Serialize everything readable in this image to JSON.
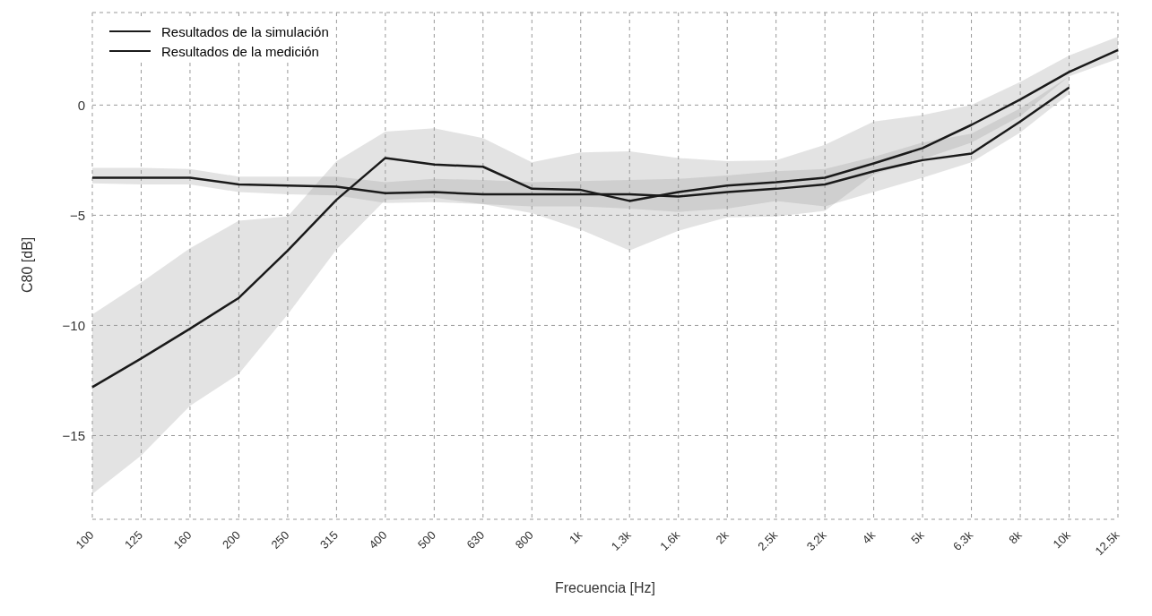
{
  "chart_data": {
    "type": "line",
    "xlabel": "Frecuencia [Hz]",
    "ylabel": "C80 [dB]",
    "categories": [
      "100",
      "125",
      "160",
      "200",
      "250",
      "315",
      "400",
      "500",
      "630",
      "800",
      "1k",
      "1.3k",
      "1.6k",
      "2k",
      "2.5k",
      "3.2k",
      "4k",
      "5k",
      "6.3k",
      "8k",
      "10k",
      "12.5k"
    ],
    "ylim": [
      -18.8,
      4.2
    ],
    "yticks": [
      {
        "value": -15,
        "label": "−15"
      },
      {
        "value": -10,
        "label": "−10"
      },
      {
        "value": -5,
        "label": "−5"
      },
      0
    ],
    "grid": true,
    "legend": "top left",
    "marker": "none",
    "line_style": "solid",
    "series": [
      {
        "name": "Resultados de la simulación",
        "color": "#1a1a1a",
        "values": [
          -3.3,
          -3.3,
          -3.3,
          -3.6,
          -3.65,
          -3.7,
          -4.0,
          -3.95,
          -4.05,
          -4.05,
          -4.05,
          -4.05,
          -4.15,
          -3.95,
          -3.8,
          -3.6,
          -3.0,
          -2.5,
          -2.2,
          -0.75,
          0.8,
          null
        ],
        "lower": [
          -3.55,
          -3.6,
          -3.6,
          -3.95,
          -4.05,
          -4.1,
          -4.45,
          -4.4,
          -4.5,
          -4.6,
          -4.6,
          -4.7,
          -4.85,
          -4.7,
          -4.35,
          -4.6,
          -3.95,
          -3.3,
          -2.6,
          -1.25,
          0.5,
          null
        ],
        "upper": [
          -2.85,
          -2.85,
          -2.9,
          -3.25,
          -3.25,
          -3.25,
          -3.5,
          -3.35,
          -3.4,
          -3.5,
          -3.45,
          -3.4,
          -3.35,
          -3.2,
          -3.0,
          -2.9,
          -2.35,
          -1.7,
          -1.3,
          -0.15,
          1.3,
          null
        ]
      },
      {
        "name": "Resultados de la medición",
        "color": "#1a1a1a",
        "values": [
          -12.8,
          -11.5,
          -10.15,
          -8.75,
          -6.6,
          -4.3,
          -2.4,
          -2.7,
          -2.8,
          -3.8,
          -3.85,
          -4.35,
          -3.95,
          -3.65,
          -3.5,
          -3.3,
          -2.65,
          -1.95,
          -0.9,
          0.25,
          1.5,
          2.5
        ],
        "lower": [
          -17.65,
          -15.9,
          -13.65,
          -12.2,
          -9.5,
          -6.55,
          -4.3,
          -4.2,
          -4.5,
          -4.9,
          -5.65,
          -6.6,
          -5.7,
          -5.1,
          -5.05,
          -4.8,
          -3.15,
          -2.45,
          -1.7,
          -0.5,
          1.3,
          2.1
        ],
        "upper": [
          -9.5,
          -8.05,
          -6.5,
          -5.25,
          -5.05,
          -2.55,
          -1.2,
          -1.05,
          -1.5,
          -2.6,
          -2.15,
          -2.1,
          -2.4,
          -2.55,
          -2.5,
          -1.8,
          -0.75,
          -0.45,
          0.0,
          1.05,
          2.25,
          3.1
        ]
      }
    ]
  }
}
